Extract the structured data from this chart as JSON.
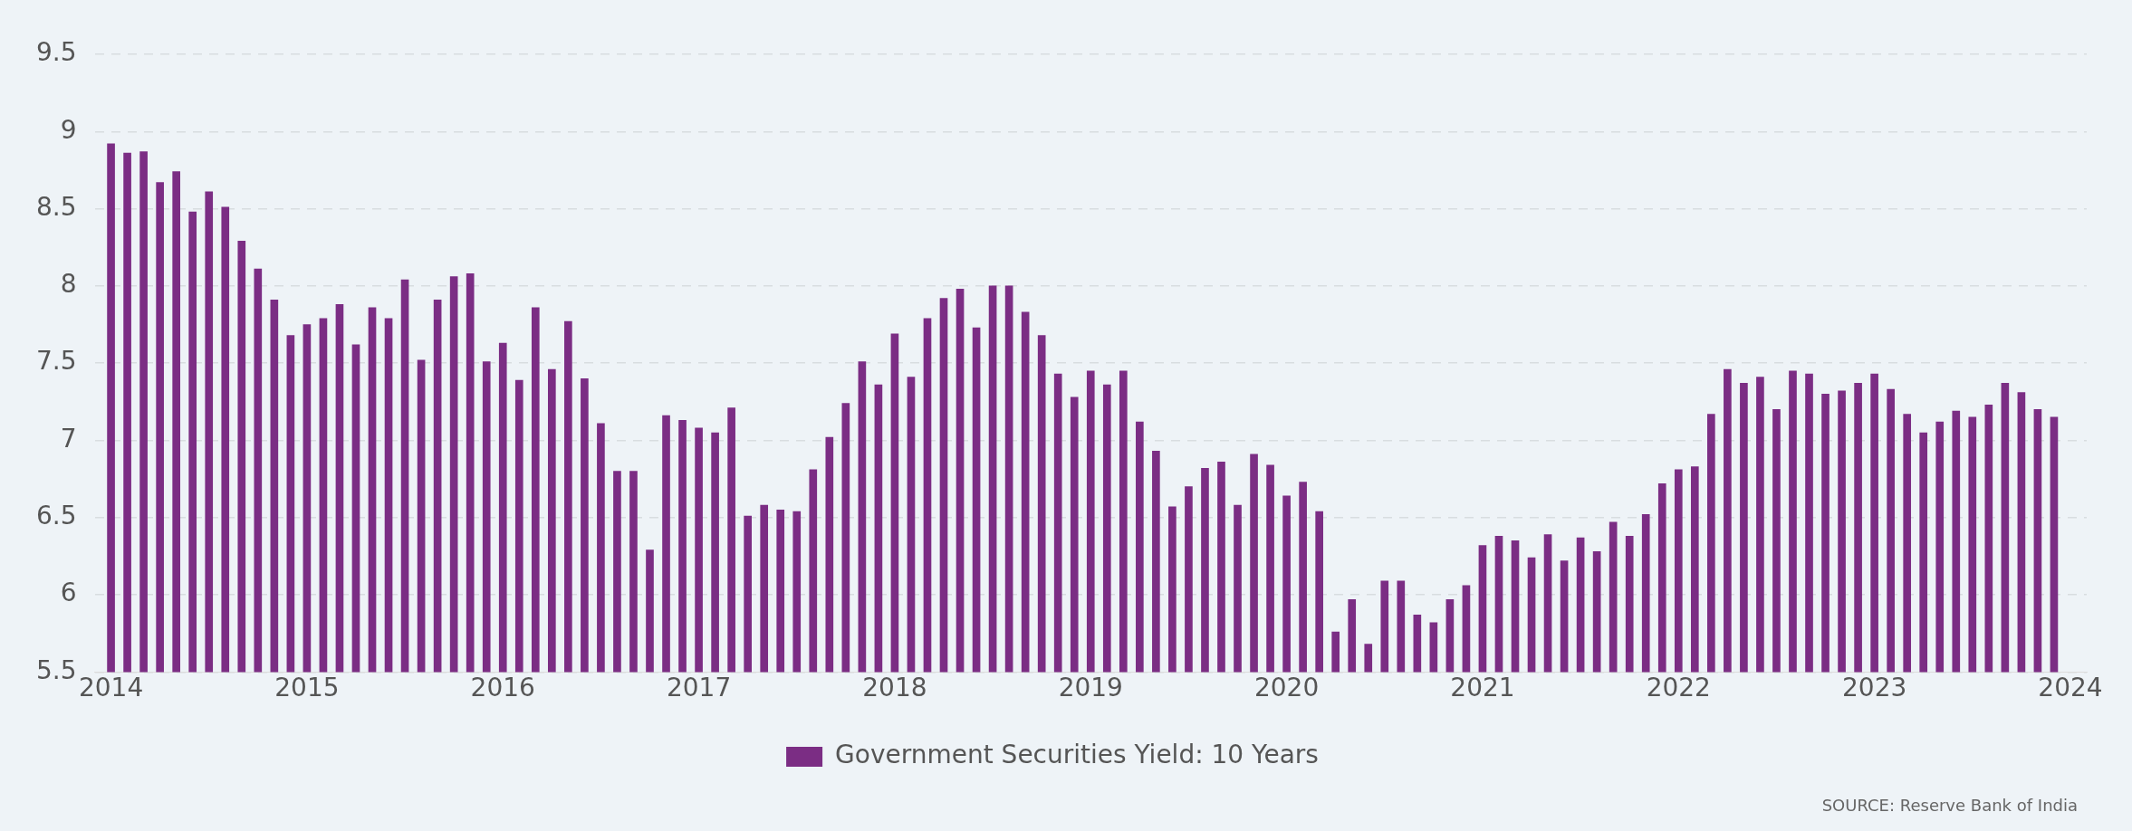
{
  "chart_data": {
    "type": "bar",
    "x": [
      "2014-01",
      "2014-02",
      "2014-03",
      "2014-04",
      "2014-05",
      "2014-06",
      "2014-07",
      "2014-08",
      "2014-09",
      "2014-10",
      "2014-11",
      "2014-12",
      "2015-01",
      "2015-02",
      "2015-03",
      "2015-04",
      "2015-05",
      "2015-06",
      "2015-07",
      "2015-08",
      "2015-09",
      "2015-10",
      "2015-11",
      "2015-12",
      "2016-01",
      "2016-02",
      "2016-03",
      "2016-04",
      "2016-05",
      "2016-06",
      "2016-07",
      "2016-08",
      "2016-09",
      "2016-10",
      "2016-11",
      "2016-12",
      "2017-01",
      "2017-02",
      "2017-03",
      "2017-04",
      "2017-05",
      "2017-06",
      "2017-07",
      "2017-08",
      "2017-09",
      "2017-10",
      "2017-11",
      "2017-12",
      "2018-01",
      "2018-02",
      "2018-03",
      "2018-04",
      "2018-05",
      "2018-06",
      "2018-07",
      "2018-08",
      "2018-09",
      "2018-10",
      "2018-11",
      "2018-12",
      "2019-01",
      "2019-02",
      "2019-03",
      "2019-04",
      "2019-05",
      "2019-06",
      "2019-07",
      "2019-08",
      "2019-09",
      "2019-10",
      "2019-11",
      "2019-12",
      "2020-01",
      "2020-02",
      "2020-03",
      "2020-04",
      "2020-05",
      "2020-06",
      "2020-07",
      "2020-08",
      "2020-09",
      "2020-10",
      "2020-11",
      "2020-12",
      "2021-01",
      "2021-02",
      "2021-03",
      "2021-04",
      "2021-05",
      "2021-06",
      "2021-07",
      "2021-08",
      "2021-09",
      "2021-10",
      "2021-11",
      "2021-12",
      "2022-01",
      "2022-02",
      "2022-03",
      "2022-04",
      "2022-05",
      "2022-06",
      "2022-07",
      "2022-08",
      "2022-09",
      "2022-10",
      "2022-11",
      "2022-12",
      "2023-01",
      "2023-02",
      "2023-03",
      "2023-04",
      "2023-05",
      "2023-06",
      "2023-07",
      "2023-08",
      "2023-09",
      "2023-10",
      "2023-11",
      "2023-12"
    ],
    "series": [
      {
        "name": "Government Securities Yield: 10 Years",
        "color": "#7b2d84",
        "values": [
          8.92,
          8.86,
          8.87,
          8.67,
          8.74,
          8.48,
          8.61,
          8.51,
          8.29,
          8.11,
          7.91,
          7.68,
          7.75,
          7.79,
          7.88,
          7.62,
          7.86,
          7.79,
          8.04,
          7.52,
          7.91,
          8.06,
          8.08,
          7.51,
          7.63,
          7.39,
          7.86,
          7.46,
          7.77,
          7.4,
          7.11,
          6.8,
          6.8,
          6.29,
          7.16,
          7.13,
          7.08,
          7.05,
          7.21,
          6.51,
          6.58,
          6.55,
          6.54,
          6.81,
          7.02,
          7.24,
          7.51,
          7.36,
          7.69,
          7.41,
          7.79,
          7.92,
          7.98,
          7.73,
          8.0,
          8.0,
          7.83,
          7.68,
          7.43,
          7.28,
          7.45,
          7.36,
          7.45,
          7.12,
          6.93,
          6.57,
          6.7,
          6.82,
          6.86,
          6.58,
          6.91,
          6.84,
          6.64,
          6.73,
          6.54,
          5.76,
          5.97,
          5.68,
          6.09,
          6.09,
          5.87,
          5.82,
          5.97,
          6.06,
          6.32,
          6.38,
          6.35,
          6.24,
          6.39,
          6.22,
          6.37,
          6.28,
          6.47,
          6.38,
          6.52,
          6.72,
          6.81,
          6.83,
          7.17,
          7.46,
          7.37,
          7.41,
          7.2,
          7.45,
          7.43,
          7.3,
          7.32,
          7.37,
          7.43,
          7.33,
          7.17,
          7.05,
          7.12,
          7.19,
          7.15,
          7.23,
          7.37,
          7.31,
          7.2,
          7.15
        ]
      }
    ],
    "xlim": [
      "2013-12",
      "2024-02"
    ],
    "xticks": [
      "2014",
      "2015",
      "2016",
      "2017",
      "2018",
      "2019",
      "2020",
      "2021",
      "2022",
      "2023",
      "2024"
    ],
    "ylim": [
      5.5,
      9.5
    ],
    "yticks": [
      5.5,
      6,
      6.5,
      7,
      7.5,
      8,
      8.5,
      9,
      9.5
    ],
    "grid": "y",
    "legend": "bottom",
    "annotations": [
      "SOURCE: Reserve Bank of India"
    ]
  }
}
